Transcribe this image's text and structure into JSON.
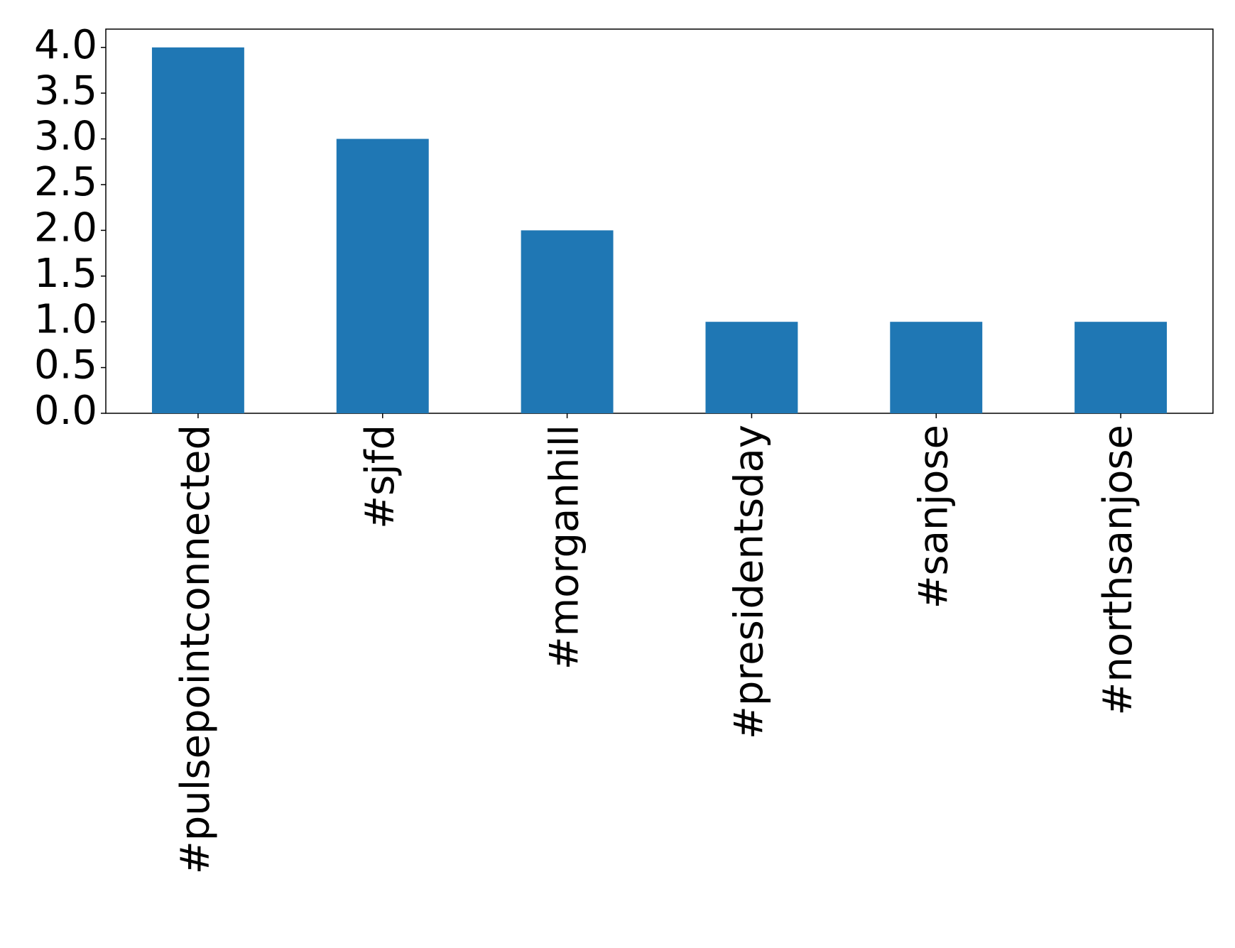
{
  "chart_data": {
    "type": "bar",
    "categories": [
      "#pulsepointconnected",
      "#sjfd",
      "#morganhill",
      "#presidentsday",
      "#sanjose",
      "#northsanjose"
    ],
    "values": [
      4,
      3,
      2,
      1,
      1,
      1
    ],
    "color": "#1f77b4",
    "ylim": [
      0,
      4.2
    ],
    "yticks": [
      {
        "value": 0,
        "label": "0.0"
      },
      {
        "value": 0.5,
        "label": "0.5"
      },
      {
        "value": 1,
        "label": "1.0"
      },
      {
        "value": 1.5,
        "label": "1.5"
      },
      {
        "value": 2,
        "label": "2.0"
      },
      {
        "value": 2.5,
        "label": "2.5"
      },
      {
        "value": 3,
        "label": "3.0"
      },
      {
        "value": 3.5,
        "label": "3.5"
      },
      {
        "value": 4,
        "label": "4.0"
      }
    ],
    "grid": false
  }
}
